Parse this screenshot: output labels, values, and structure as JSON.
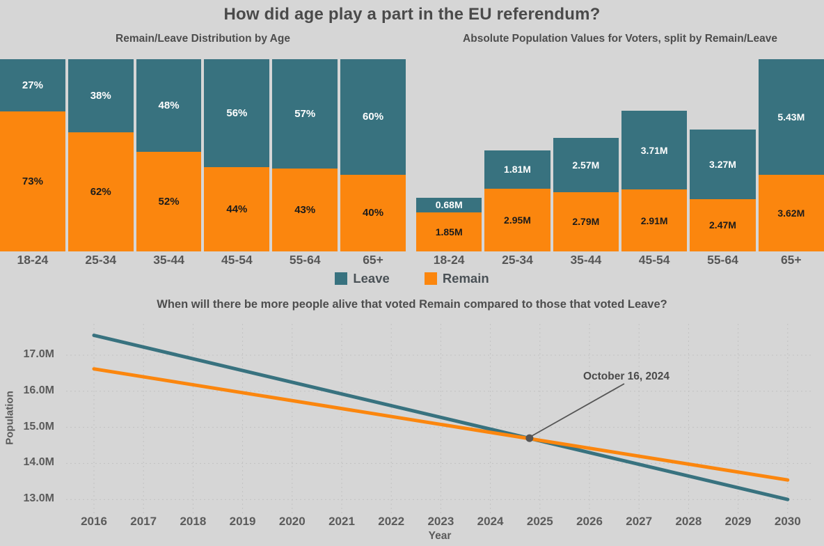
{
  "page": {
    "title": "How did age play a part in the EU referendum?",
    "background": "#D6D6D6"
  },
  "colors": {
    "leave": "#38727F",
    "remain": "#FB860E",
    "title_text": "#4A4A4A",
    "tick_text": "#5B5B5B",
    "grid": "#C2C2C2",
    "annotation": "#555555"
  },
  "legend": {
    "items": [
      {
        "label": "Leave",
        "color": "#38727F"
      },
      {
        "label": "Remain",
        "color": "#FB860E"
      }
    ]
  },
  "chart_data": [
    {
      "id": "pct_by_age",
      "type": "bar",
      "stacked": true,
      "unit": "percent",
      "title": "Remain/Leave Distribution by Age",
      "categories": [
        "18-24",
        "25-34",
        "35-44",
        "45-54",
        "55-64",
        "65+"
      ],
      "series": [
        {
          "name": "Leave",
          "color": "#38727F",
          "label_color": "#FFFFFF",
          "values": [
            27,
            38,
            48,
            56,
            57,
            60
          ],
          "labels": [
            "27%",
            "38%",
            "48%",
            "56%",
            "57%",
            "60%"
          ]
        },
        {
          "name": "Remain",
          "color": "#FB860E",
          "label_color": "#1B1B1B",
          "values": [
            73,
            62,
            52,
            44,
            43,
            40
          ],
          "labels": [
            "73%",
            "62%",
            "52%",
            "44%",
            "43%",
            "40%"
          ]
        }
      ]
    },
    {
      "id": "abs_by_age",
      "type": "bar",
      "stacked": true,
      "unit": "millions",
      "title": "Absolute Population Values for Voters, split by Remain/Leave",
      "categories": [
        "18-24",
        "25-34",
        "35-44",
        "45-54",
        "55-64",
        "65+"
      ],
      "series": [
        {
          "name": "Leave",
          "color": "#38727F",
          "label_color": "#FFFFFF",
          "values": [
            0.68,
            1.81,
            2.57,
            3.71,
            3.27,
            5.43
          ],
          "labels": [
            "0.68M",
            "1.81M",
            "2.57M",
            "3.71M",
            "3.27M",
            "5.43M"
          ]
        },
        {
          "name": "Remain",
          "color": "#FB860E",
          "label_color": "#1B1B1B",
          "values": [
            1.85,
            2.95,
            2.79,
            2.91,
            2.47,
            3.62
          ],
          "labels": [
            "1.85M",
            "2.95M",
            "2.79M",
            "2.91M",
            "2.47M",
            "3.62M"
          ]
        }
      ]
    },
    {
      "id": "projection",
      "type": "line",
      "title": "When will there be more people alive that voted Remain compared to those that voted Leave?",
      "xlabel": "Year",
      "ylabel": "Population",
      "x_ticks": [
        2016,
        2017,
        2018,
        2019,
        2020,
        2021,
        2022,
        2023,
        2024,
        2025,
        2026,
        2027,
        2028,
        2029,
        2030
      ],
      "y_ticks": [
        "17.0M",
        "16.0M",
        "15.0M",
        "14.0M",
        "13.0M"
      ],
      "y_tick_values": [
        17,
        16,
        15,
        14,
        13
      ],
      "xlim": [
        2015.5,
        2030.5
      ],
      "ylim": [
        12.6,
        17.9
      ],
      "grid": true,
      "series": [
        {
          "name": "Leave",
          "color": "#38727F",
          "x": [
            2016,
            2030
          ],
          "y": [
            17.55,
            13.0
          ]
        },
        {
          "name": "Remain",
          "color": "#FB860E",
          "x": [
            2016,
            2030
          ],
          "y": [
            16.62,
            13.54
          ]
        }
      ],
      "annotation": {
        "label": "October 16, 2024",
        "x": 2024.79,
        "y": 14.7
      }
    }
  ]
}
